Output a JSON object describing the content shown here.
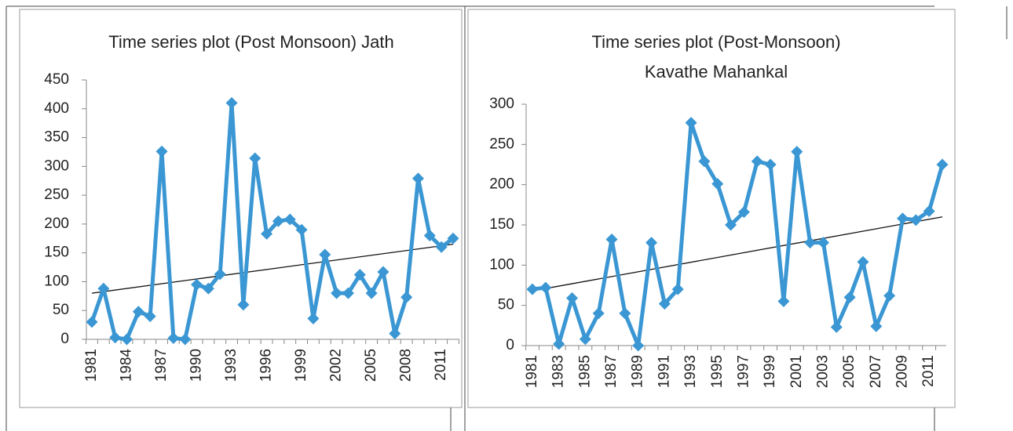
{
  "chart_data": [
    {
      "type": "line",
      "title": [
        "Time series plot (Post Monsoon) Jath"
      ],
      "categories": [
        "1981",
        null,
        null,
        "1984",
        null,
        null,
        "1987",
        null,
        null,
        "1990",
        null,
        null,
        "1993",
        null,
        null,
        "1996",
        null,
        null,
        "1999",
        null,
        null,
        "2002",
        null,
        null,
        "2005",
        null,
        null,
        "2008",
        null,
        null,
        "2011",
        null
      ],
      "series": [
        {
          "color": "#3a97d3",
          "values": [
            30,
            88,
            3,
            0,
            48,
            40,
            326,
            2,
            0,
            95,
            88,
            113,
            410,
            60,
            314,
            183,
            205,
            208,
            190,
            36,
            147,
            80,
            80,
            112,
            80,
            117,
            10,
            73,
            279,
            180,
            160,
            175
          ]
        }
      ],
      "trend": [
        80,
        165
      ],
      "trend_color": "#111111",
      "ylim": [
        0,
        450
      ],
      "yticks": [
        0,
        50,
        100,
        150,
        200,
        250,
        300,
        350,
        400,
        450
      ]
    },
    {
      "type": "line",
      "title": [
        "Time series plot (Post-Monsoon)",
        "Kavathe Mahankal"
      ],
      "categories": [
        "1981",
        null,
        "1983",
        null,
        "1985",
        null,
        "1987",
        null,
        "1989",
        null,
        "1991",
        null,
        "1993",
        null,
        "1995",
        null,
        "1997",
        null,
        "1999",
        null,
        "2001",
        null,
        "2003",
        null,
        "2005",
        null,
        "2007",
        null,
        "2009",
        null,
        "2011",
        null
      ],
      "series": [
        {
          "color": "#3a97d3",
          "values": [
            70,
            72,
            2,
            59,
            8,
            40,
            132,
            40,
            0,
            128,
            52,
            70,
            277,
            229,
            201,
            150,
            166,
            229,
            225,
            55,
            241,
            128,
            128,
            23,
            60,
            104,
            24,
            62,
            158,
            156,
            167,
            225
          ]
        }
      ],
      "trend": [
        68,
        160
      ],
      "trend_color": "#111111",
      "ylim": [
        0,
        300
      ],
      "yticks": [
        0,
        50,
        100,
        150,
        200,
        250,
        300
      ]
    }
  ]
}
